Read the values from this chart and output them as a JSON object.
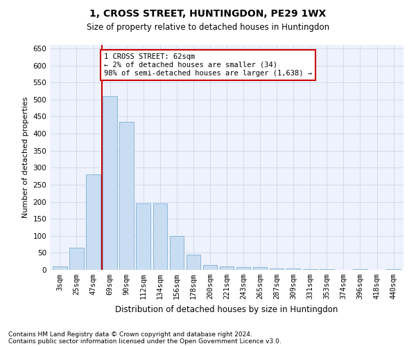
{
  "title": "1, CROSS STREET, HUNTINGDON, PE29 1WX",
  "subtitle": "Size of property relative to detached houses in Huntingdon",
  "xlabel": "Distribution of detached houses by size in Huntingdon",
  "ylabel": "Number of detached properties",
  "bar_labels": [
    "3sqm",
    "25sqm",
    "47sqm",
    "69sqm",
    "90sqm",
    "112sqm",
    "134sqm",
    "156sqm",
    "178sqm",
    "200sqm",
    "221sqm",
    "243sqm",
    "265sqm",
    "287sqm",
    "309sqm",
    "331sqm",
    "353sqm",
    "374sqm",
    "396sqm",
    "418sqm",
    "440sqm"
  ],
  "bar_values": [
    10,
    65,
    280,
    510,
    435,
    195,
    195,
    100,
    45,
    15,
    10,
    8,
    8,
    5,
    5,
    3,
    3,
    0,
    3,
    0,
    3
  ],
  "bar_color": "#c9ddf2",
  "bar_edge_color": "#7bafd4",
  "vline_color": "#cc0000",
  "annotation_text": "1 CROSS STREET: 62sqm\n← 2% of detached houses are smaller (34)\n98% of semi-detached houses are larger (1,638) →",
  "annotation_box_color": "#ffffff",
  "annotation_box_edge": "#cc0000",
  "ylim": [
    0,
    660
  ],
  "yticks": [
    0,
    50,
    100,
    150,
    200,
    250,
    300,
    350,
    400,
    450,
    500,
    550,
    600,
    650
  ],
  "footer_line1": "Contains HM Land Registry data © Crown copyright and database right 2024.",
  "footer_line2": "Contains public sector information licensed under the Open Government Licence v3.0.",
  "bg_color": "#eef2fc",
  "grid_color": "#c8d0e8",
  "title_fontsize": 10,
  "subtitle_fontsize": 8.5,
  "ylabel_fontsize": 8,
  "xlabel_fontsize": 8.5,
  "tick_fontsize": 7.5,
  "footer_fontsize": 6.5
}
